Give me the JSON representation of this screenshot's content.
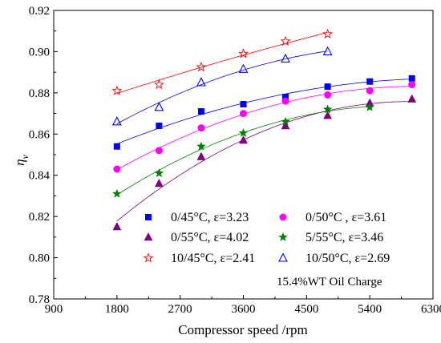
{
  "chart_data": {
    "type": "scatter",
    "xlabel": "Compressor speed /rpm",
    "ylabel": "η",
    "ylabel_sub": "v",
    "xlim": [
      900,
      6300
    ],
    "ylim": [
      0.78,
      0.92
    ],
    "xticks": [
      "900",
      "1800",
      "2700",
      "3600",
      "4500",
      "5400",
      "6300"
    ],
    "yticks": [
      "0.78",
      "0.80",
      "0.82",
      "0.84",
      "0.86",
      "0.88",
      "0.90",
      "0.92"
    ],
    "grid": false,
    "legend_position": "bottom-right",
    "annotation": "15.4%WT Oil Charge",
    "series": [
      {
        "name": "0/45°C, ε=3.23",
        "marker": "square",
        "color": "#0000ff",
        "x": [
          1800,
          2400,
          3000,
          3600,
          4200,
          4800,
          5400,
          6000
        ],
        "y": [
          0.854,
          0.864,
          0.871,
          0.8745,
          0.878,
          0.883,
          0.8855,
          0.887
        ]
      },
      {
        "name": "0/50°C , ε=3.61",
        "marker": "circle",
        "color": "#ff00ff",
        "x": [
          1800,
          2400,
          3000,
          3600,
          4200,
          4800,
          5400,
          6000
        ],
        "y": [
          0.843,
          0.852,
          0.863,
          0.87,
          0.876,
          0.879,
          0.881,
          0.884
        ]
      },
      {
        "name": "0/55°C, ε=4.02",
        "marker": "triangle-filled",
        "color": "#800080",
        "x": [
          1800,
          2400,
          3000,
          3600,
          4200,
          4800,
          5400,
          6000
        ],
        "y": [
          0.815,
          0.836,
          0.849,
          0.857,
          0.864,
          0.869,
          0.875,
          0.877
        ]
      },
      {
        "name": "5/55°C, ε=3.46",
        "marker": "star-filled",
        "color": "#008000",
        "x": [
          1800,
          2400,
          3000,
          3600,
          4200,
          4800,
          5400
        ],
        "y": [
          0.831,
          0.841,
          0.854,
          0.8605,
          0.866,
          0.872,
          0.873
        ]
      },
      {
        "name": "10/45°C, ε=2.41",
        "marker": "star-open",
        "color": "#ff0000",
        "x": [
          1800,
          2400,
          3000,
          3600,
          4200,
          4800
        ],
        "y": [
          0.881,
          0.884,
          0.8925,
          0.899,
          0.905,
          0.9085
        ]
      },
      {
        "name": "10/50°C, ε=2.69",
        "marker": "triangle-open",
        "color": "#0000ff",
        "x": [
          1800,
          2400,
          3000,
          3600,
          4200,
          4800
        ],
        "y": [
          0.866,
          0.873,
          0.885,
          0.8915,
          0.8965,
          0.9
        ]
      }
    ]
  }
}
